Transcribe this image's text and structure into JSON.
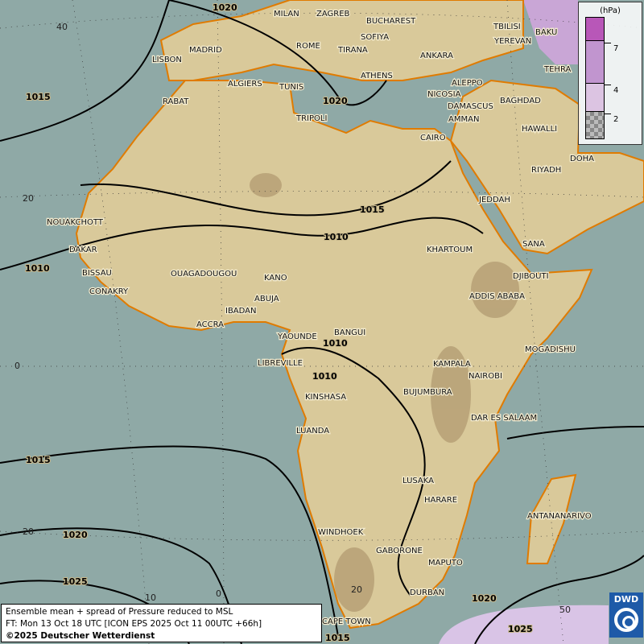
{
  "map": {
    "colors": {
      "ocean": "#8fa9a6",
      "land": "#d9c99a",
      "highland": "#a89068",
      "coast": "#e07b00",
      "isobar": "#000000"
    },
    "cities": [
      {
        "name": "MILAN"
      },
      {
        "name": "ZAGREB"
      },
      {
        "name": "BUCHAREST"
      },
      {
        "name": "SOFIYA"
      },
      {
        "name": "ROME"
      },
      {
        "name": "TIRANA"
      },
      {
        "name": "ANKARA"
      },
      {
        "name": "LISBON"
      },
      {
        "name": "MADRID"
      },
      {
        "name": "ATHENS"
      },
      {
        "name": "ALGIERS"
      },
      {
        "name": "TUNIS"
      },
      {
        "name": "ALEPPO"
      },
      {
        "name": "NICOSIA"
      },
      {
        "name": "BAGHDAD"
      },
      {
        "name": "DAMASCUS"
      },
      {
        "name": "RABAT"
      },
      {
        "name": "TRIPOLI"
      },
      {
        "name": "AMMAN"
      },
      {
        "name": "HAWALLI"
      },
      {
        "name": "CAIRO"
      },
      {
        "name": "DOHA"
      },
      {
        "name": "RIYADH"
      },
      {
        "name": "TBILISI"
      },
      {
        "name": "YEREVAN"
      },
      {
        "name": "BAKU"
      },
      {
        "name": "TEHRA"
      },
      {
        "name": "JEDDAH"
      },
      {
        "name": "NOUAKCHOTT"
      },
      {
        "name": "SANA"
      },
      {
        "name": "DAKAR"
      },
      {
        "name": "KHARTOUM"
      },
      {
        "name": "BISSAU"
      },
      {
        "name": "DJIBOUTI"
      },
      {
        "name": "OUAGADOUGOU"
      },
      {
        "name": "KANO"
      },
      {
        "name": "CONAKRY"
      },
      {
        "name": "ABUJA"
      },
      {
        "name": "ADDIS ABABA"
      },
      {
        "name": "IBADAN"
      },
      {
        "name": "ACCRA"
      },
      {
        "name": "BANGUI"
      },
      {
        "name": "YAOUNDE"
      },
      {
        "name": "MOGADISHU"
      },
      {
        "name": "LIBREVILLE"
      },
      {
        "name": "KAMPALA"
      },
      {
        "name": "NAIROBI"
      },
      {
        "name": "BUJUMBURA"
      },
      {
        "name": "KINSHASA"
      },
      {
        "name": "DAR ES SALAAM"
      },
      {
        "name": "LUANDA"
      },
      {
        "name": "LUSAKA"
      },
      {
        "name": "HARARE"
      },
      {
        "name": "ANTANANARIVO"
      },
      {
        "name": "WINDHOEK"
      },
      {
        "name": "GABORONE"
      },
      {
        "name": "MAPUTO"
      },
      {
        "name": "DURBAN"
      },
      {
        "name": "CAPE TOWN"
      }
    ],
    "isobar_labels": [
      "1020",
      "1015",
      "1020",
      "1015",
      "1010",
      "1010",
      "1010",
      "1010",
      "1015",
      "1020",
      "1025",
      "1020",
      "1025",
      "1015"
    ],
    "grid_labels": [
      "40",
      "20",
      "0",
      "20",
      "10",
      "0",
      "20",
      "50"
    ]
  },
  "legend": {
    "unit": "(hPa)",
    "levels": [
      "7",
      "4",
      "2"
    ],
    "colors": [
      "#b857b8",
      "#c195cf",
      "#dcc4e2",
      "#9a9a9a"
    ]
  },
  "caption": {
    "line1": "Ensemble mean + spread of Pressure reduced to MSL",
    "line2": "FT: Mon 13 Oct 18 UTC [ICON EPS 2025 Oct 11 00UTC +66h]",
    "line3": "©2025 Deutscher Wetterdienst"
  },
  "logo": {
    "text": "DWD"
  }
}
